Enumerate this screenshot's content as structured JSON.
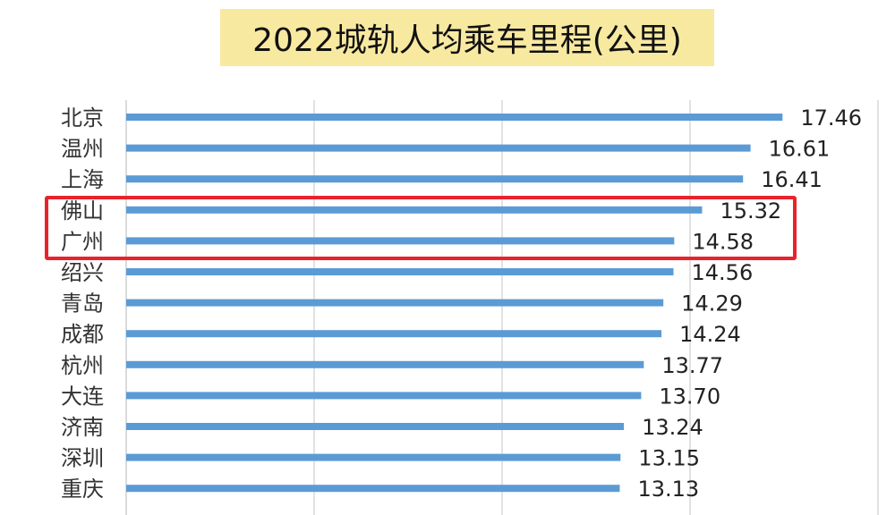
{
  "title": "2022城轨人均乘车里程(公里)",
  "chart_data": {
    "type": "bar",
    "orientation": "horizontal",
    "title": "2022城轨人均乘车里程(公里)",
    "categories": [
      "北京",
      "温州",
      "上海",
      "佛山",
      "广州",
      "绍兴",
      "青岛",
      "成都",
      "杭州",
      "大连",
      "济南",
      "深圳",
      "重庆"
    ],
    "values": [
      17.46,
      16.61,
      16.41,
      15.32,
      14.58,
      14.56,
      14.29,
      14.24,
      13.77,
      13.7,
      13.24,
      13.15,
      13.13
    ],
    "value_labels": [
      "17.46",
      "16.61",
      "16.41",
      "15.32",
      "14.58",
      "14.56",
      "14.29",
      "14.24",
      "13.77",
      "13.70",
      "13.24",
      "13.15",
      "13.13"
    ],
    "xlim": [
      0,
      20
    ],
    "grid": true,
    "highlighted_categories": [
      "佛山",
      "广州"
    ],
    "bar_color": "#5b9bd5",
    "highlight_color": "#e8232c"
  }
}
